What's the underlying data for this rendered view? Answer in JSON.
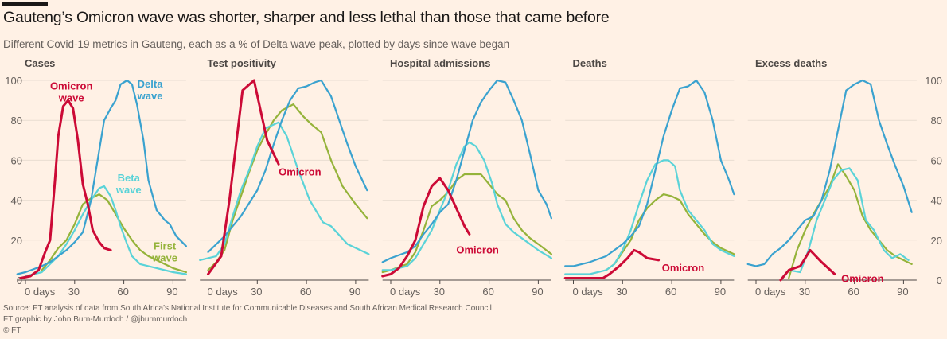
{
  "title": "Gauteng’s Omicron wave was shorter, sharper and less lethal than those that came before",
  "subtitle": "Different Covid-19 metrics in Gauteng, each as a % of Delta wave peak, plotted by days since wave began",
  "footer": {
    "source": "Source: FT analysis of data from South Africa’s National Institute for Communicable Diseases and South African Medical Research Council",
    "credit": "FT graphic by John Burn-Murdoch / @jburnmurdoch",
    "copyright": "© FT"
  },
  "colors": {
    "background": "#fff1e5",
    "Omicron": "#cc0a36",
    "Delta": "#3aa2cf",
    "Beta": "#5ad3d8",
    "First": "#95b33a",
    "grid": "#e9ddd2"
  },
  "chart_data": [
    {
      "type": "line",
      "title": "Cases",
      "xlim": [
        -5,
        98
      ],
      "ylim": [
        0,
        100
      ],
      "grid": true,
      "xticks": [
        {
          "v": 0,
          "label": "0 days"
        },
        {
          "v": 30,
          "label": "30"
        },
        {
          "v": 60,
          "label": "60"
        },
        {
          "v": 90,
          "label": "90"
        }
      ],
      "yticks": [
        0,
        20,
        40,
        60,
        80,
        100
      ],
      "ytick_side": "left",
      "series": [
        {
          "key": "First",
          "x": [
            10,
            15,
            20,
            25,
            30,
            35,
            40,
            45,
            50,
            55,
            60,
            65,
            70,
            75,
            80,
            85,
            90,
            98
          ],
          "y": [
            5,
            10,
            16,
            20,
            28,
            38,
            41,
            43,
            40,
            33,
            26,
            20,
            15,
            12,
            10,
            8,
            6,
            4
          ]
        },
        {
          "key": "Beta",
          "x": [
            0,
            10,
            15,
            20,
            25,
            30,
            35,
            40,
            45,
            48,
            52,
            55,
            58,
            62,
            65,
            70,
            80,
            90,
            98
          ],
          "y": [
            2,
            4,
            8,
            12,
            18,
            25,
            33,
            40,
            46,
            47,
            42,
            35,
            27,
            18,
            12,
            8,
            6,
            4,
            3
          ]
        },
        {
          "key": "Delta",
          "x": [
            -5,
            0,
            10,
            15,
            20,
            25,
            30,
            35,
            40,
            45,
            48,
            52,
            55,
            58,
            62,
            65,
            68,
            72,
            75,
            80,
            85,
            88,
            92,
            98
          ],
          "y": [
            3,
            4,
            7,
            9,
            12,
            15,
            19,
            24,
            40,
            65,
            80,
            86,
            90,
            98,
            100,
            98,
            88,
            70,
            50,
            35,
            30,
            28,
            22,
            17
          ]
        },
        {
          "key": "Omicron",
          "x": [
            -3,
            3,
            8,
            12,
            15,
            18,
            20,
            23,
            26,
            29,
            32,
            35,
            38,
            41,
            45,
            48,
            52
          ],
          "y": [
            1,
            2,
            5,
            14,
            20,
            50,
            72,
            87,
            90,
            86,
            70,
            48,
            38,
            25,
            19,
            16,
            15
          ]
        }
      ],
      "annotations": [
        {
          "key": "Omicron",
          "lines": [
            "Omicron",
            "wave"
          ],
          "x": 28,
          "y": 97
        },
        {
          "key": "Delta",
          "lines": [
            "Delta",
            "wave"
          ],
          "x": 76,
          "y": 98
        },
        {
          "key": "Beta",
          "lines": [
            "Beta",
            "wave"
          ],
          "x": 63,
          "y": 51
        },
        {
          "key": "First",
          "lines": [
            "First",
            "wave"
          ],
          "x": 85,
          "y": 17
        }
      ]
    },
    {
      "type": "line",
      "title": "Test positivity",
      "xlim": [
        -5,
        98
      ],
      "ylim": [
        0,
        100
      ],
      "grid": true,
      "xticks": [
        {
          "v": 0,
          "label": "0 days"
        },
        {
          "v": 30,
          "label": "30"
        },
        {
          "v": 60,
          "label": "60"
        },
        {
          "v": 90,
          "label": "90"
        }
      ],
      "series": [
        {
          "key": "First",
          "x": [
            0,
            5,
            10,
            15,
            20,
            25,
            30,
            35,
            40,
            45,
            52,
            58,
            63,
            69,
            75,
            82,
            90,
            97
          ],
          "y": [
            5,
            9,
            15,
            30,
            42,
            54,
            65,
            73,
            80,
            85,
            88,
            82,
            78,
            74,
            60,
            47,
            38,
            31
          ]
        },
        {
          "key": "Beta",
          "x": [
            -5,
            0,
            5,
            10,
            15,
            20,
            25,
            30,
            35,
            43,
            48,
            55,
            62,
            70,
            75,
            85,
            98
          ],
          "y": [
            10,
            11,
            12,
            18,
            32,
            45,
            55,
            67,
            76,
            79,
            72,
            55,
            40,
            29,
            27,
            18,
            13
          ]
        },
        {
          "key": "Delta",
          "x": [
            0,
            10,
            20,
            30,
            35,
            40,
            45,
            50,
            55,
            60,
            65,
            69,
            75,
            80,
            85,
            90,
            97
          ],
          "y": [
            14,
            22,
            32,
            45,
            55,
            68,
            80,
            90,
            96,
            97,
            99,
            100,
            92,
            80,
            68,
            57,
            45
          ]
        },
        {
          "key": "Omicron",
          "x": [
            0,
            8,
            13,
            21,
            28,
            32,
            36,
            43
          ],
          "y": [
            3,
            12,
            40,
            95,
            100,
            85,
            70,
            58
          ]
        }
      ],
      "annotations": [
        {
          "key": "Omicron",
          "lines": [
            "Omicron"
          ],
          "x": 43,
          "y": 54
        }
      ]
    },
    {
      "type": "line",
      "title": "Hospital admissions",
      "xlim": [
        -5,
        98
      ],
      "ylim": [
        0,
        100
      ],
      "grid": true,
      "xticks": [
        {
          "v": 0,
          "label": "0 days"
        },
        {
          "v": 30,
          "label": "30"
        },
        {
          "v": 60,
          "label": "60"
        },
        {
          "v": 90,
          "label": "90"
        }
      ],
      "series": [
        {
          "key": "First",
          "x": [
            -5,
            0,
            10,
            15,
            20,
            25,
            30,
            35,
            40,
            45,
            50,
            55,
            60,
            65,
            70,
            75,
            80,
            85,
            90,
            98
          ],
          "y": [
            4,
            5,
            8,
            14,
            25,
            37,
            40,
            44,
            50,
            53,
            53,
            53,
            48,
            43,
            40,
            31,
            25,
            21,
            18,
            13
          ]
        },
        {
          "key": "Beta",
          "x": [
            -5,
            0,
            10,
            15,
            20,
            25,
            30,
            35,
            40,
            45,
            48,
            52,
            57,
            62,
            65,
            70,
            75,
            80,
            85,
            90,
            98
          ],
          "y": [
            5,
            5,
            7,
            11,
            18,
            25,
            35,
            45,
            58,
            67,
            69,
            67,
            60,
            48,
            38,
            28,
            24,
            21,
            18,
            15,
            11
          ]
        },
        {
          "key": "Delta",
          "x": [
            -5,
            0,
            10,
            15,
            20,
            25,
            30,
            35,
            40,
            45,
            50,
            55,
            60,
            65,
            70,
            75,
            80,
            85,
            90,
            95,
            98
          ],
          "y": [
            9,
            11,
            14,
            17,
            23,
            28,
            34,
            38,
            50,
            65,
            80,
            89,
            95,
            100,
            99,
            90,
            80,
            63,
            45,
            38,
            31
          ]
        },
        {
          "key": "Omicron",
          "x": [
            -5,
            0,
            5,
            10,
            15,
            20,
            25,
            30,
            35,
            40,
            45,
            48
          ],
          "y": [
            2,
            3,
            6,
            12,
            20,
            37,
            47,
            51,
            45,
            36,
            27,
            23
          ]
        }
      ],
      "annotations": [
        {
          "key": "Omicron",
          "lines": [
            "Omicron"
          ],
          "x": 40,
          "y": 15
        }
      ]
    },
    {
      "type": "line",
      "title": "Deaths",
      "xlim": [
        -5,
        98
      ],
      "ylim": [
        0,
        100
      ],
      "grid": true,
      "xticks": [
        {
          "v": 0,
          "label": "0 days"
        },
        {
          "v": 30,
          "label": "30"
        },
        {
          "v": 60,
          "label": "60"
        },
        {
          "v": 90,
          "label": "90"
        }
      ],
      "series": [
        {
          "key": "First",
          "x": [
            20,
            25,
            30,
            35,
            40,
            45,
            50,
            55,
            60,
            65,
            70,
            75,
            80,
            85,
            90,
            98
          ],
          "y": [
            5,
            8,
            14,
            20,
            30,
            36,
            40,
            43,
            42,
            40,
            33,
            28,
            23,
            19,
            16,
            13
          ]
        },
        {
          "key": "Beta",
          "x": [
            -5,
            0,
            10,
            20,
            25,
            30,
            35,
            40,
            45,
            50,
            55,
            58,
            62,
            65,
            70,
            75,
            80,
            85,
            90,
            98
          ],
          "y": [
            3,
            3,
            3,
            5,
            8,
            15,
            25,
            38,
            50,
            58,
            60,
            60,
            57,
            45,
            35,
            30,
            25,
            18,
            15,
            12
          ]
        },
        {
          "key": "Delta",
          "x": [
            -5,
            0,
            10,
            20,
            25,
            30,
            35,
            40,
            45,
            50,
            55,
            60,
            65,
            70,
            75,
            80,
            85,
            90,
            95,
            98
          ],
          "y": [
            7,
            7,
            9,
            12,
            15,
            18,
            22,
            27,
            38,
            55,
            72,
            85,
            96,
            97,
            100,
            94,
            80,
            60,
            50,
            43
          ]
        },
        {
          "key": "Omicron",
          "x": [
            -5,
            0,
            10,
            18,
            22,
            28,
            33,
            37,
            40,
            45,
            52
          ],
          "y": [
            1,
            1,
            1,
            1,
            3,
            7,
            11,
            15,
            14,
            11,
            10
          ]
        }
      ],
      "annotations": [
        {
          "key": "Omicron",
          "lines": [
            "Omicron"
          ],
          "x": 54,
          "y": 6
        }
      ]
    },
    {
      "type": "line",
      "title": "Excess deaths",
      "xlim": [
        -5,
        98
      ],
      "ylim": [
        0,
        100
      ],
      "grid": true,
      "xticks": [
        {
          "v": 0,
          "label": "0 days"
        },
        {
          "v": 30,
          "label": "30"
        },
        {
          "v": 60,
          "label": "60"
        },
        {
          "v": 90,
          "label": "90"
        }
      ],
      "yticks": [
        0,
        20,
        40,
        60,
        80,
        100
      ],
      "ytick_side": "right",
      "series": [
        {
          "key": "First",
          "x": [
            20,
            25,
            30,
            35,
            40,
            45,
            50,
            55,
            60,
            65,
            70,
            75,
            80,
            85,
            90,
            95
          ],
          "y": [
            1,
            15,
            25,
            33,
            40,
            47,
            58,
            52,
            45,
            32,
            25,
            20,
            15,
            12,
            10,
            8
          ]
        },
        {
          "key": "Beta",
          "x": [
            20,
            27,
            32,
            37,
            42,
            47,
            52,
            57,
            62,
            67,
            72,
            78,
            83,
            88,
            93
          ],
          "y": [
            5,
            4,
            15,
            30,
            40,
            50,
            55,
            56,
            50,
            30,
            25,
            15,
            11,
            13,
            10
          ]
        },
        {
          "key": "Delta",
          "x": [
            -5,
            0,
            5,
            10,
            15,
            20,
            25,
            30,
            35,
            40,
            45,
            50,
            55,
            60,
            65,
            70,
            75,
            80,
            85,
            90,
            95
          ],
          "y": [
            8,
            7,
            8,
            13,
            16,
            20,
            25,
            30,
            32,
            40,
            55,
            75,
            95,
            98,
            100,
            98,
            80,
            68,
            57,
            47,
            34
          ]
        },
        {
          "key": "Omicron",
          "x": [
            15,
            20,
            27,
            33,
            40,
            48
          ],
          "y": [
            0,
            5,
            7,
            15,
            9,
            3
          ]
        }
      ],
      "annotations": [
        {
          "key": "Omicron",
          "lines": [
            "Omicron"
          ],
          "x": 52,
          "y": 0.5
        }
      ]
    }
  ]
}
